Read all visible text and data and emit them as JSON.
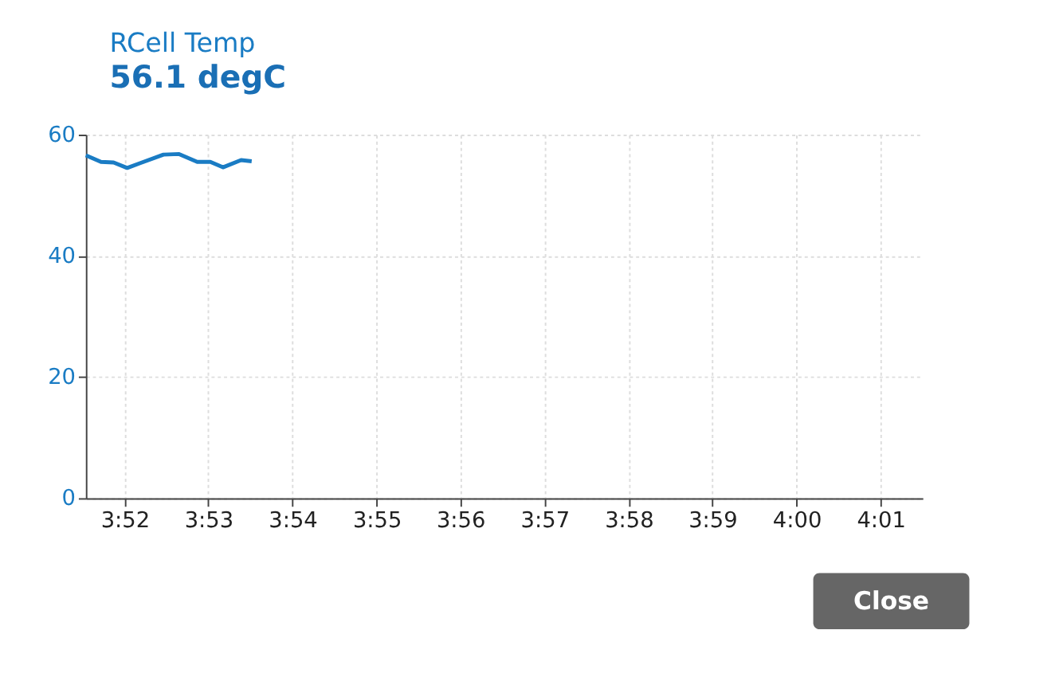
{
  "chart_data": {
    "type": "line",
    "title": "RCell Temp",
    "subtitle": "56.1 degC",
    "x": [
      3.859,
      3.862,
      3.8645,
      3.8672,
      3.8698,
      3.8744,
      3.8775,
      3.8811,
      3.8837,
      3.8862,
      3.8898,
      3.8919
    ],
    "series": [
      {
        "color": "#1a7cc4",
        "values": [
          56.6,
          55.5,
          55.4,
          54.5,
          55.3,
          56.7,
          56.8,
          55.5,
          55.5,
          54.6,
          55.8,
          55.6
        ]
      }
    ],
    "xlim": [
      3.859,
      4.025
    ],
    "xticks": [
      {
        "value": 3.8667,
        "label": "3:52"
      },
      {
        "value": 3.8833,
        "label": "3:53"
      },
      {
        "value": 3.9,
        "label": "3:54"
      },
      {
        "value": 3.9167,
        "label": "3:55"
      },
      {
        "value": 3.9333,
        "label": "3:56"
      },
      {
        "value": 3.95,
        "label": "3:57"
      },
      {
        "value": 3.9667,
        "label": "3:58"
      },
      {
        "value": 3.9833,
        "label": "3:59"
      },
      {
        "value": 4.0,
        "label": "4:00"
      },
      {
        "value": 4.0167,
        "label": "4:01"
      }
    ],
    "ylim": [
      0,
      60
    ],
    "yticks": [
      0,
      20,
      40,
      60
    ],
    "grid": true,
    "legend": false,
    "marker": "none",
    "line_style": "solid",
    "annotations": [
      "Close"
    ]
  }
}
